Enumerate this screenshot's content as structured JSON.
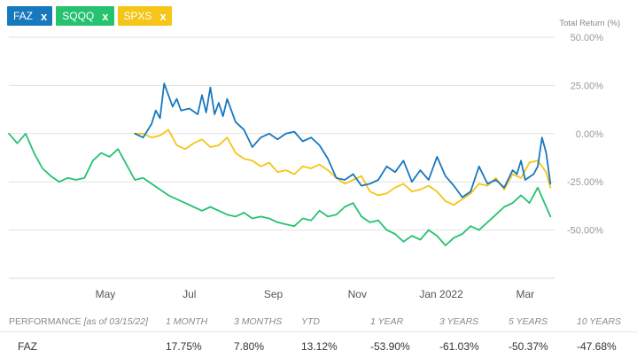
{
  "tickers": [
    {
      "label": "FAZ",
      "close": "x",
      "color": "#1878be"
    },
    {
      "label": "SQQQ",
      "close": "x",
      "color": "#25c270"
    },
    {
      "label": "SPXS",
      "close": "x",
      "color": "#f5c518"
    }
  ],
  "chart_data": {
    "type": "line",
    "ylabel": "Total Return (%)",
    "ylim": [
      -75,
      50
    ],
    "yticks": [
      "50.00%",
      "25.00%",
      "0.00%",
      "-25.00%",
      "-50.00%"
    ],
    "ytick_values": [
      50,
      25,
      0,
      -25,
      -50
    ],
    "xticks": [
      "May",
      "Jul",
      "Sep",
      "Nov",
      "Jan 2022",
      "Mar"
    ],
    "xtick_values": [
      2.6,
      4.6,
      6.6,
      8.6,
      10.6,
      12.6
    ],
    "xlim": [
      0.3,
      13.3
    ],
    "grid": true,
    "series": [
      {
        "name": "FAZ",
        "color": "#1878be",
        "x": [
          3.3,
          3.5,
          3.7,
          3.8,
          3.9,
          4.0,
          4.2,
          4.3,
          4.4,
          4.6,
          4.8,
          4.9,
          5.0,
          5.1,
          5.2,
          5.3,
          5.4,
          5.5,
          5.7,
          5.9,
          6.1,
          6.3,
          6.5,
          6.7,
          6.9,
          7.1,
          7.3,
          7.5,
          7.7,
          7.9,
          8.1,
          8.3,
          8.5,
          8.7,
          8.9,
          9.1,
          9.3,
          9.5,
          9.7,
          9.9,
          10.1,
          10.3,
          10.5,
          10.7,
          10.9,
          11.1,
          11.3,
          11.5,
          11.7,
          11.9,
          12.1,
          12.3,
          12.4,
          12.5,
          12.6,
          12.8,
          12.9,
          13.0,
          13.1,
          13.2
        ],
        "y": [
          0,
          -2,
          5,
          12,
          8,
          26,
          14,
          18,
          12,
          13,
          10,
          20,
          11,
          24,
          10,
          16,
          9,
          18,
          6,
          2,
          -7,
          -2,
          0,
          -3,
          0,
          1,
          -4,
          -2,
          -6,
          -13,
          -23,
          -24,
          -21,
          -27,
          -26,
          -24,
          -17,
          -20,
          -14,
          -25,
          -19,
          -24,
          -12,
          -22,
          -27,
          -33,
          -30,
          -17,
          -26,
          -24,
          -28,
          -19,
          -21,
          -14,
          -24,
          -21,
          -17,
          -2,
          -10,
          -26
        ]
      },
      {
        "name": "SQQQ",
        "color": "#25c270",
        "x": [
          0.3,
          0.5,
          0.7,
          0.9,
          1.1,
          1.3,
          1.5,
          1.7,
          1.9,
          2.1,
          2.3,
          2.5,
          2.7,
          2.9,
          3.1,
          3.3,
          3.5,
          3.7,
          3.9,
          4.1,
          4.3,
          4.5,
          4.7,
          4.9,
          5.1,
          5.3,
          5.5,
          5.7,
          5.9,
          6.1,
          6.3,
          6.5,
          6.7,
          6.9,
          7.1,
          7.3,
          7.5,
          7.7,
          7.9,
          8.1,
          8.3,
          8.5,
          8.7,
          8.9,
          9.1,
          9.3,
          9.5,
          9.7,
          9.9,
          10.1,
          10.3,
          10.5,
          10.7,
          10.9,
          11.1,
          11.3,
          11.5,
          11.7,
          11.9,
          12.1,
          12.3,
          12.5,
          12.7,
          12.9,
          13.1,
          13.2
        ],
        "y": [
          0,
          -5,
          0,
          -10,
          -18,
          -22,
          -25,
          -23,
          -24,
          -23,
          -14,
          -10,
          -12,
          -8,
          -16,
          -24,
          -23,
          -26,
          -29,
          -32,
          -34,
          -36,
          -38,
          -40,
          -38,
          -40,
          -42,
          -43,
          -41,
          -44,
          -43,
          -44,
          -46,
          -47,
          -48,
          -44,
          -45,
          -40,
          -43,
          -42,
          -38,
          -36,
          -43,
          -46,
          -45,
          -50,
          -52,
          -56,
          -53,
          -55,
          -50,
          -53,
          -58,
          -54,
          -52,
          -48,
          -50,
          -46,
          -42,
          -38,
          -36,
          -32,
          -36,
          -28,
          -38,
          -43
        ]
      },
      {
        "name": "SPXS",
        "color": "#f5c518",
        "x": [
          3.3,
          3.5,
          3.7,
          3.9,
          4.1,
          4.3,
          4.5,
          4.7,
          4.9,
          5.1,
          5.3,
          5.5,
          5.7,
          5.9,
          6.1,
          6.3,
          6.5,
          6.7,
          6.9,
          7.1,
          7.3,
          7.5,
          7.7,
          7.9,
          8.1,
          8.3,
          8.5,
          8.7,
          8.9,
          9.1,
          9.3,
          9.5,
          9.7,
          9.9,
          10.1,
          10.3,
          10.5,
          10.7,
          10.9,
          11.1,
          11.3,
          11.5,
          11.7,
          11.9,
          12.1,
          12.3,
          12.5,
          12.7,
          12.9,
          13.0,
          13.1,
          13.2
        ],
        "y": [
          0,
          0,
          -2,
          -1,
          2,
          -6,
          -8,
          -5,
          -3,
          -7,
          -6,
          -2,
          -10,
          -13,
          -14,
          -17,
          -15,
          -20,
          -19,
          -21,
          -17,
          -18,
          -16,
          -19,
          -23,
          -26,
          -24,
          -22,
          -30,
          -32,
          -31,
          -28,
          -26,
          -30,
          -29,
          -27,
          -30,
          -35,
          -37,
          -34,
          -31,
          -26,
          -27,
          -23,
          -29,
          -21,
          -23,
          -15,
          -14,
          -17,
          -20,
          -28
        ]
      }
    ]
  },
  "performance": {
    "header_main": "PERFORMANCE",
    "header_sub": "[as of 03/15/22]",
    "columns": [
      "1 MONTH",
      "3 MONTHS",
      "YTD",
      "1 YEAR",
      "3 YEARS",
      "5 YEARS",
      "10 YEARS"
    ],
    "rows": [
      {
        "ticker": "FAZ",
        "values": [
          "17.75%",
          "7.80%",
          "13.12%",
          "-53.90%",
          "-61.03%",
          "-50.37%",
          "-47.68%"
        ]
      }
    ]
  }
}
